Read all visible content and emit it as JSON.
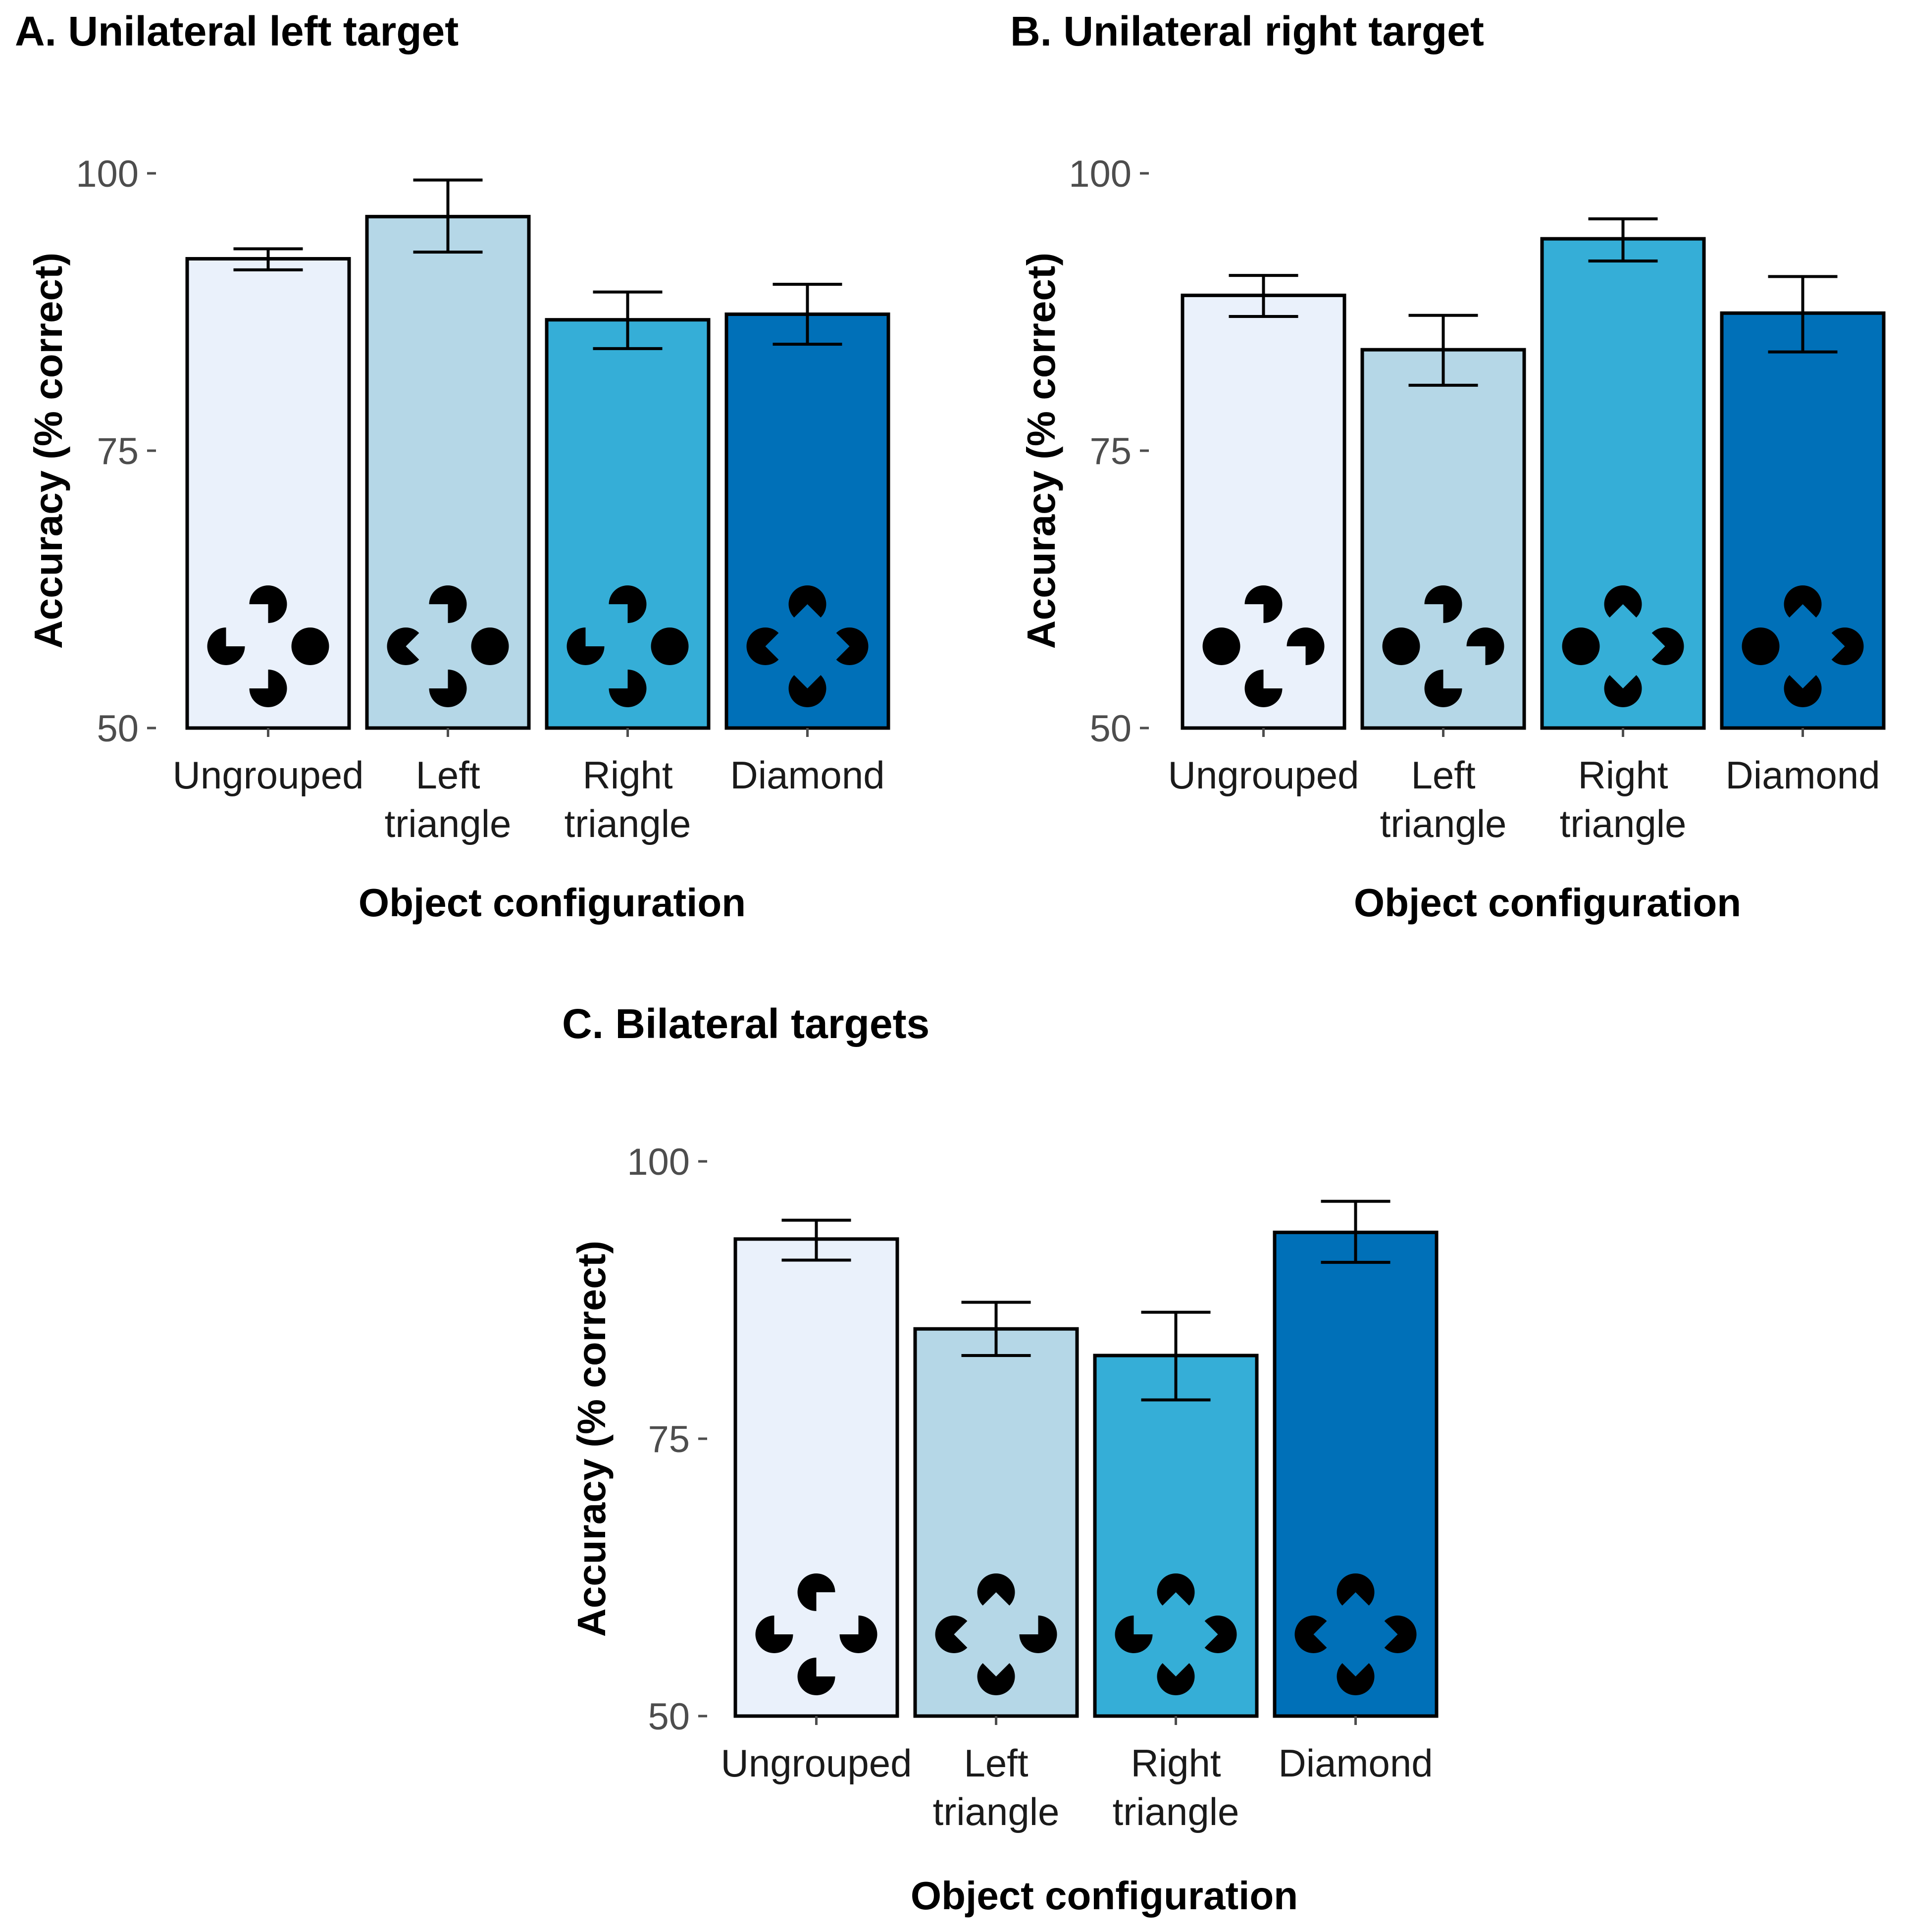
{
  "colors": [
    "#eaf1fb",
    "#b5d7e7",
    "#35aed7",
    "#0070b8"
  ],
  "chart_data": [
    {
      "type": "bar",
      "title": "A. Unilateral left target",
      "xlabel": "Object configuration",
      "ylabel": "Accuracy (% correct)",
      "ylim": [
        50,
        100
      ],
      "yticks": [
        50,
        75,
        100
      ],
      "categories": [
        "Ungrouped",
        "Left triangle",
        "Right triangle",
        "Diamond"
      ],
      "category_lines": [
        [
          "Ungrouped"
        ],
        [
          "Left",
          "triangle"
        ],
        [
          "Right",
          "triangle"
        ],
        [
          "Diamond"
        ]
      ],
      "values": [
        92.3,
        96.1,
        86.8,
        87.3
      ],
      "error_low": [
        91.3,
        92.9,
        84.2,
        84.6
      ],
      "error_high": [
        93.2,
        99.4,
        89.3,
        90.0
      ],
      "icon_mouths": [
        [
          "bottom-left",
          "left",
          "right-none",
          "top-right"
        ],
        [
          "bottom-left",
          "right",
          "none",
          "top-right"
        ],
        [
          "bottom-left",
          "right",
          "none",
          "top-right"
        ],
        [
          "bottom-left",
          "right",
          "left",
          "top-right"
        ]
      ],
      "grid": false,
      "legend": "none"
    },
    {
      "type": "bar",
      "title": "B. Unilateral right target",
      "xlabel": "Object configuration",
      "ylabel": "Accuracy (% correct)",
      "ylim": [
        50,
        100
      ],
      "yticks": [
        50,
        75,
        100
      ],
      "categories": [
        "Ungrouped",
        "Left triangle",
        "Right triangle",
        "Diamond"
      ],
      "category_lines": [
        [
          "Ungrouped"
        ],
        [
          "Left",
          "triangle"
        ],
        [
          "Right",
          "triangle"
        ],
        [
          "Diamond"
        ]
      ],
      "values": [
        89.0,
        84.1,
        94.1,
        87.4
      ],
      "error_low": [
        87.1,
        80.9,
        92.1,
        83.9
      ],
      "error_high": [
        90.8,
        87.2,
        95.9,
        90.7
      ],
      "grid": false,
      "legend": "none"
    },
    {
      "type": "bar",
      "title": "C. Bilateral targets",
      "xlabel": "Object configuration",
      "ylabel": "Accuracy (% correct)",
      "ylim": [
        50,
        100
      ],
      "yticks": [
        50,
        75,
        100
      ],
      "categories": [
        "Ungrouped",
        "Left triangle",
        "Right triangle",
        "Diamond"
      ],
      "category_lines": [
        [
          "Ungrouped"
        ],
        [
          "Left",
          "triangle"
        ],
        [
          "Right",
          "triangle"
        ],
        [
          "Diamond"
        ]
      ],
      "values": [
        93.0,
        84.9,
        82.5,
        93.6
      ],
      "error_low": [
        91.1,
        82.5,
        78.5,
        90.9
      ],
      "error_high": [
        94.7,
        87.3,
        86.4,
        96.4
      ],
      "grid": false,
      "legend": "none"
    }
  ]
}
